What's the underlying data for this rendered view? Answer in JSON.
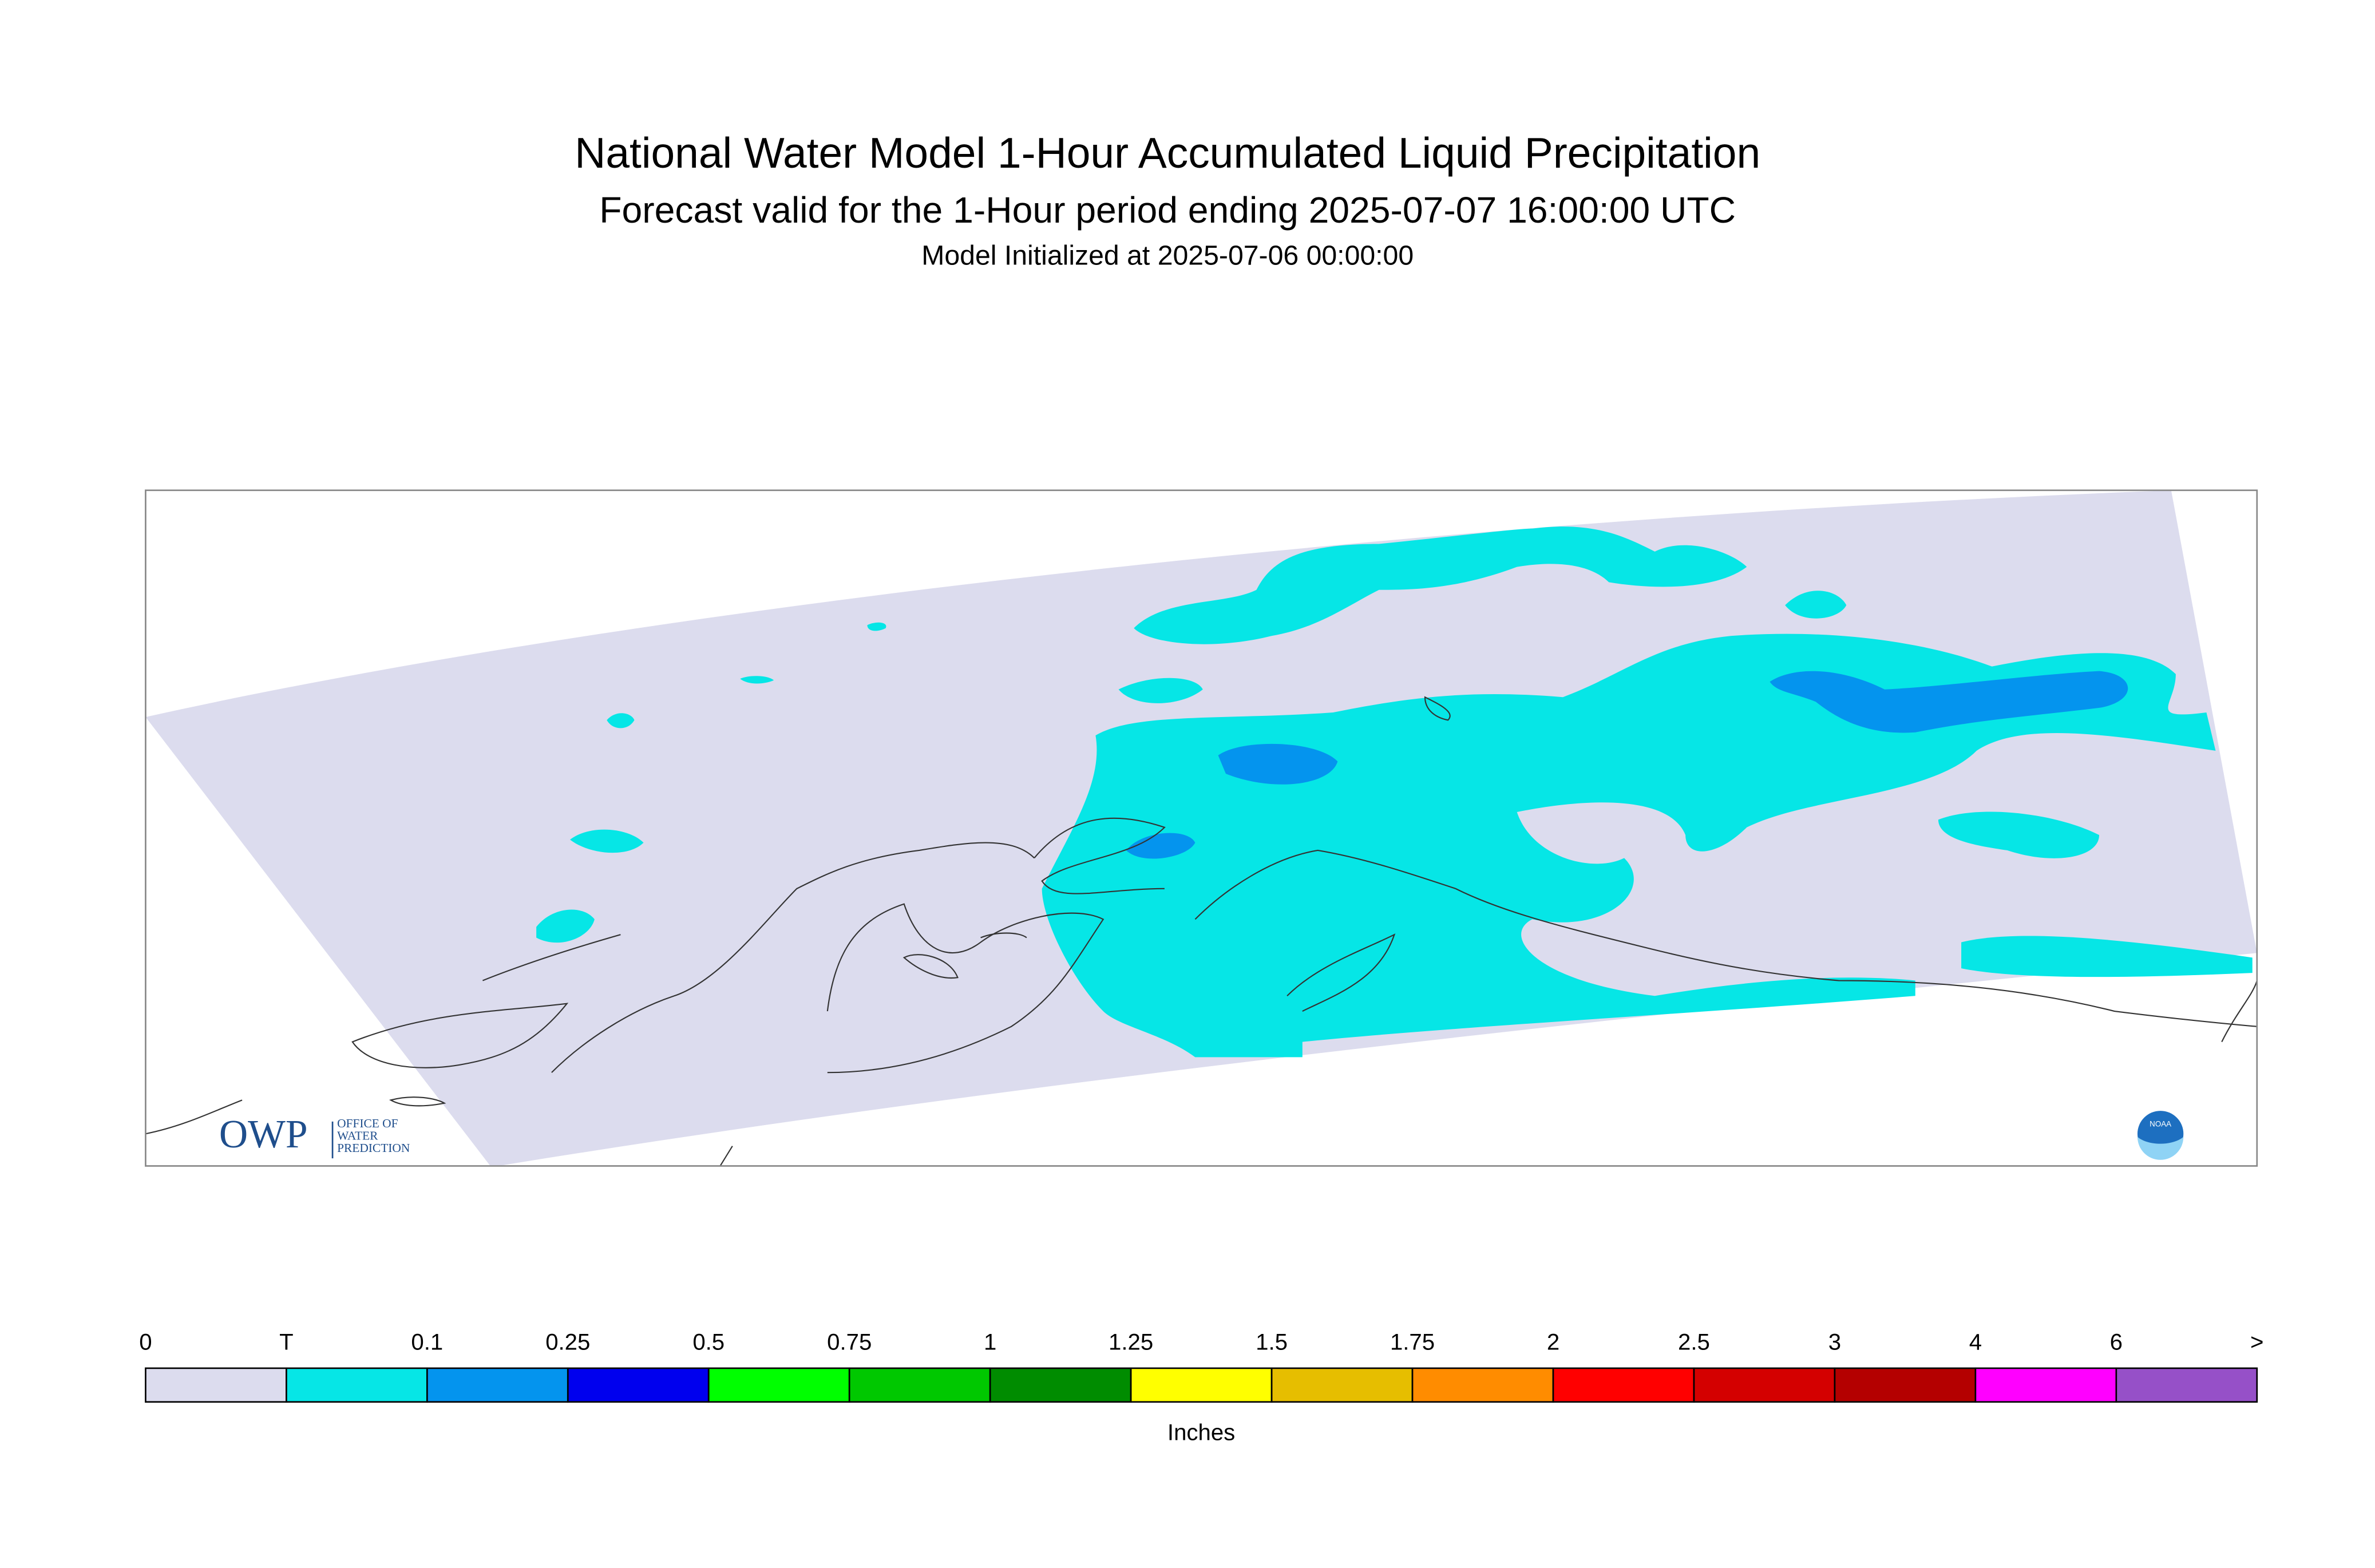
{
  "header": {
    "title": "National Water Model 1-Hour Accumulated Liquid Precipitation",
    "subtitle": "Forecast valid for the 1-Hour period ending 2025-07-07 16:00:00 UTC",
    "init": "Model Initialized at 2025-07-06 00:00:00"
  },
  "legend": {
    "labels": [
      "0",
      "T",
      "0.1",
      "0.25",
      "0.5",
      "0.75",
      "1",
      "1.25",
      "1.5",
      "1.75",
      "2",
      "2.5",
      "3",
      "4",
      "6",
      ">"
    ],
    "colors": [
      "#dcdcee",
      "#06e6e6",
      "#0494ee",
      "#0000ee",
      "#00ff00",
      "#00c800",
      "#008c00",
      "#ffff00",
      "#e6be00",
      "#ff8c00",
      "#ff0000",
      "#d40000",
      "#b40000",
      "#ff00ff",
      "#9650c8"
    ],
    "units": "Inches"
  },
  "logos": {
    "owp": "OWP",
    "owp_text": [
      "OFFICE OF",
      "WATER",
      "PREDICTION"
    ],
    "noaa": "NOAA"
  }
}
